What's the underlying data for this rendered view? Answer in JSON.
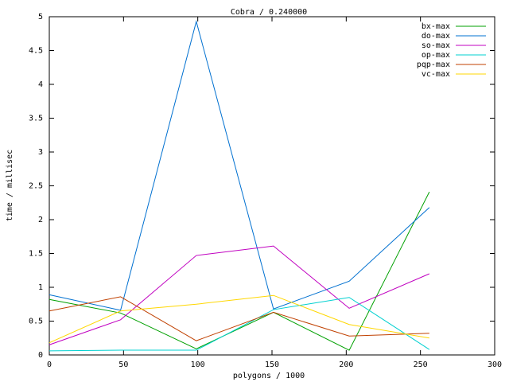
{
  "chart_data": {
    "type": "line",
    "title": "Cobra / 0.240000",
    "x_label": "polygons / 1000",
    "y_label": "time / millisec",
    "x": [
      0,
      48,
      99,
      151,
      202,
      256
    ],
    "xlim": [
      0,
      300
    ],
    "xticks": [
      0,
      50,
      100,
      150,
      200,
      250,
      300
    ],
    "ylim": [
      0,
      5
    ],
    "yticks": [
      0,
      0.5,
      1,
      1.5,
      2,
      2.5,
      3,
      3.5,
      4,
      4.5,
      5
    ],
    "legend": "top-right",
    "series": [
      {
        "name": "bx-max",
        "color": "#00a000",
        "values": [
          0.82,
          0.62,
          0.09,
          0.63,
          0.07,
          2.41
        ]
      },
      {
        "name": "do-max",
        "color": "#0070d0",
        "values": [
          0.89,
          0.66,
          4.93,
          0.68,
          1.09,
          2.18
        ]
      },
      {
        "name": "so-max",
        "color": "#c000c0",
        "values": [
          0.15,
          0.52,
          1.47,
          1.61,
          0.69,
          1.2
        ]
      },
      {
        "name": "op-max",
        "color": "#00d0d0",
        "values": [
          0.06,
          0.07,
          0.07,
          0.67,
          0.85,
          0.08
        ]
      },
      {
        "name": "pqp-max",
        "color": "#c04000",
        "values": [
          0.65,
          0.86,
          0.21,
          0.63,
          0.28,
          0.32
        ]
      },
      {
        "name": "vc-max",
        "color": "#ffd700",
        "values": [
          0.18,
          0.65,
          0.75,
          0.88,
          0.45,
          0.25
        ]
      }
    ]
  }
}
